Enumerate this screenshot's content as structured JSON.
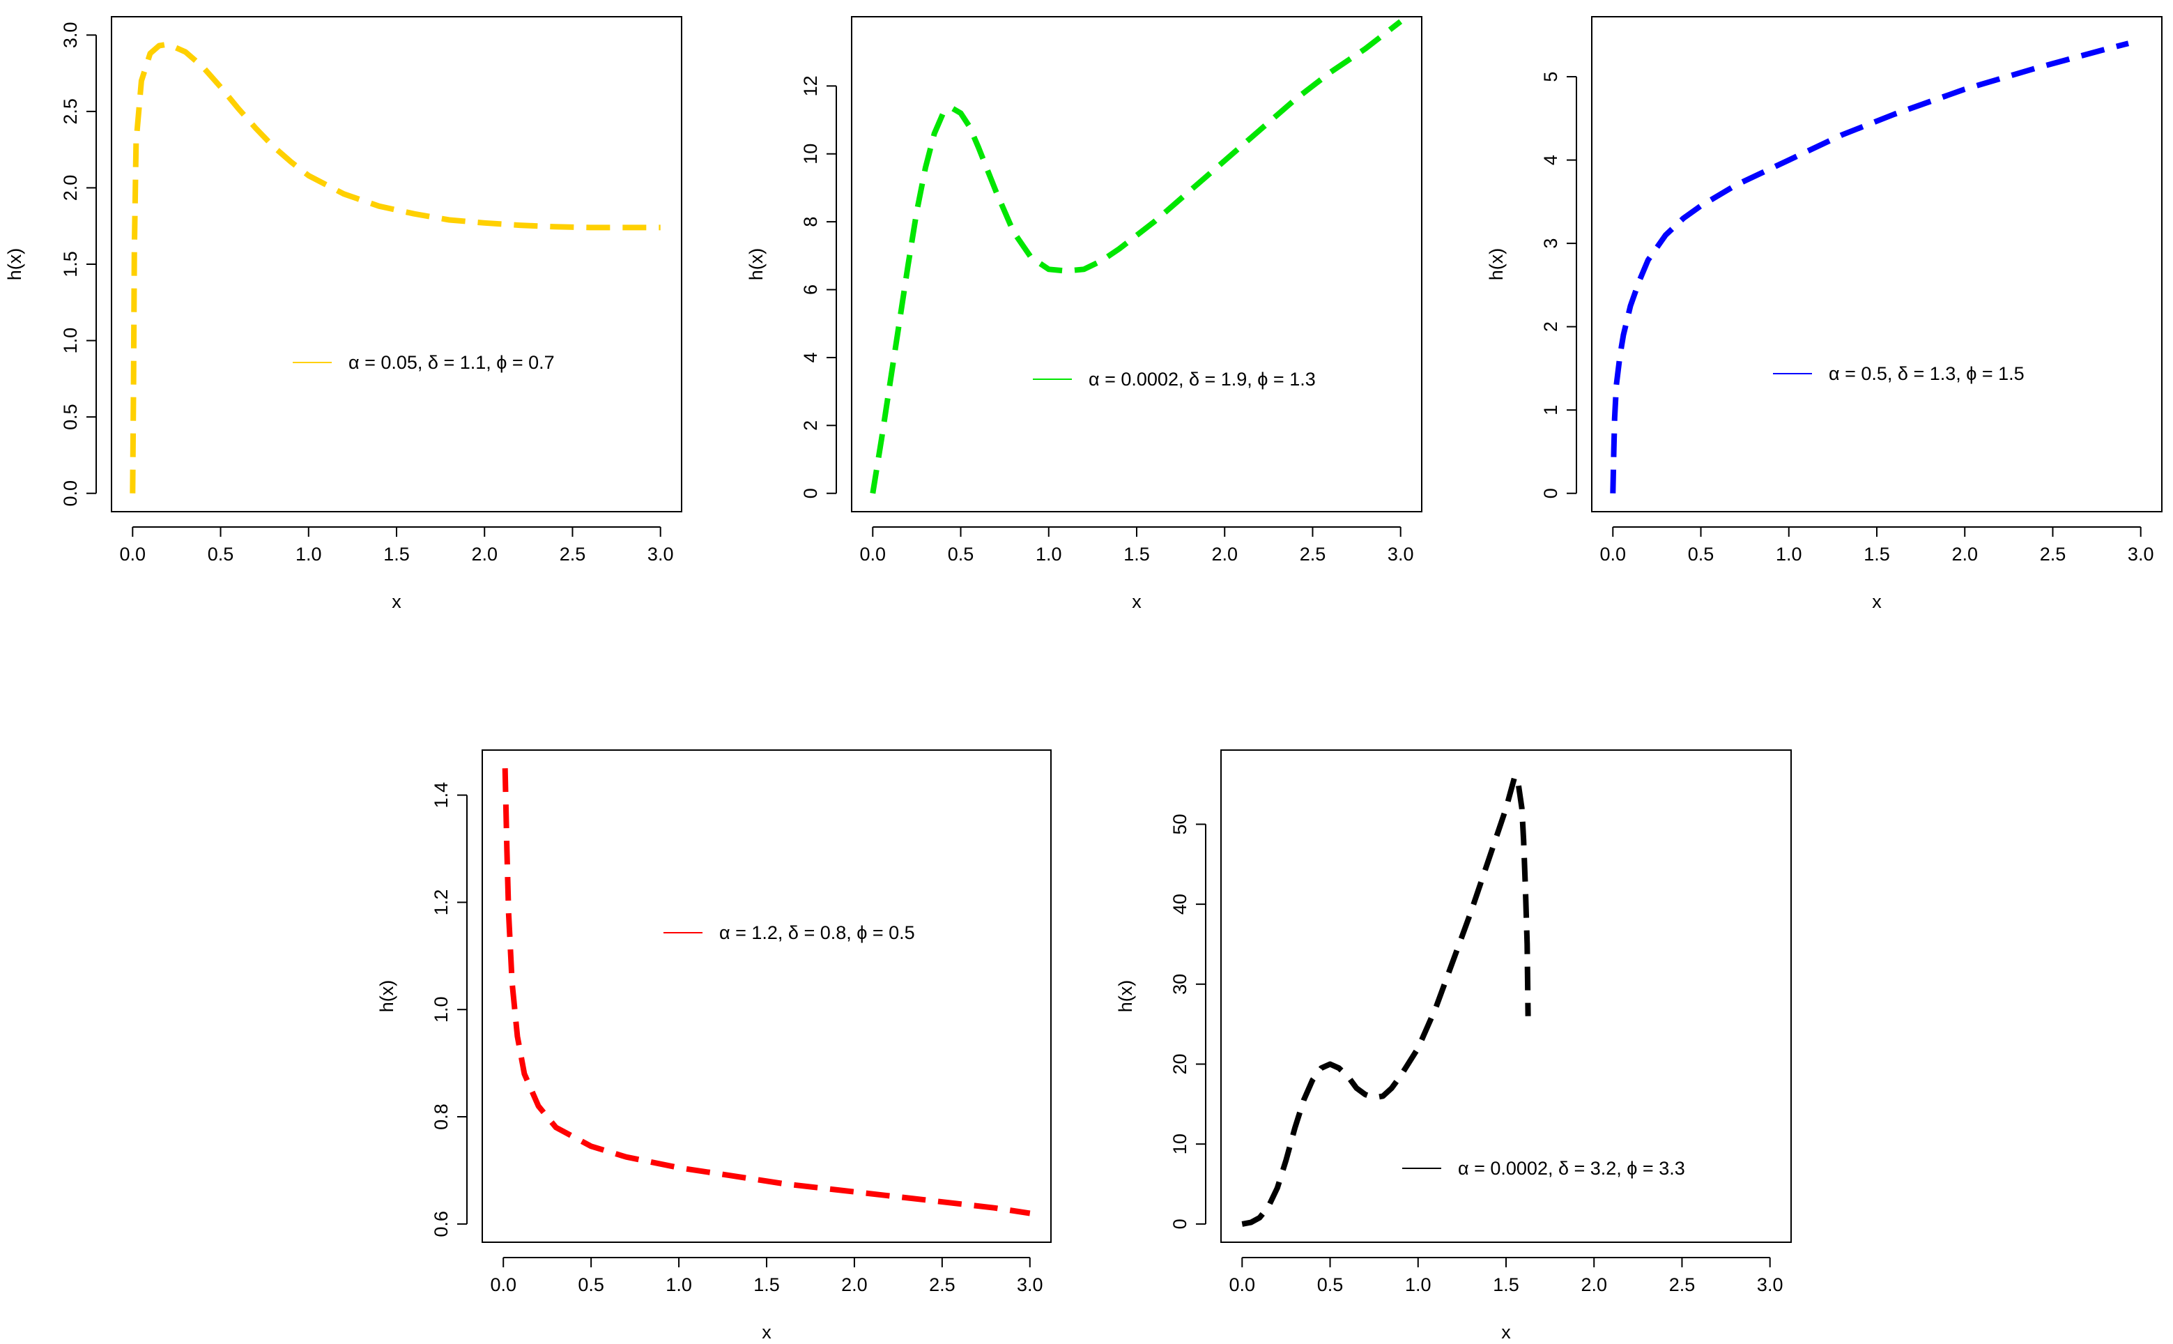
{
  "chart_data": [
    {
      "type": "line",
      "xlabel": "x",
      "ylabel": "h(x)",
      "xlim": [
        0,
        3
      ],
      "ylim": [
        0,
        3
      ],
      "x_ticks": [
        "0.0",
        "0.5",
        "1.0",
        "1.5",
        "2.0",
        "2.5",
        "3.0"
      ],
      "y_ticks": [
        "0.0",
        "0.5",
        "1.0",
        "1.5",
        "2.0",
        "2.5",
        "3.0"
      ],
      "legend": {
        "position": "center-right",
        "entries": [
          {
            "label": "α = 0.05, δ = 1.1, ϕ = 0.7",
            "color": "#FFD000"
          }
        ]
      },
      "line_style": "dashed",
      "series": [
        {
          "name": "α = 0.05, δ = 1.1, ϕ = 0.7",
          "color": "#FFD000",
          "x": [
            0.0,
            0.005,
            0.01,
            0.02,
            0.05,
            0.1,
            0.15,
            0.2,
            0.3,
            0.4,
            0.5,
            0.6,
            0.7,
            0.8,
            0.9,
            1.0,
            1.2,
            1.4,
            1.6,
            1.8,
            2.0,
            2.2,
            2.4,
            2.6,
            2.8,
            3.0
          ],
          "y": [
            0.0,
            0.7,
            1.6,
            2.3,
            2.7,
            2.88,
            2.93,
            2.94,
            2.89,
            2.79,
            2.66,
            2.52,
            2.39,
            2.27,
            2.17,
            2.08,
            1.96,
            1.88,
            1.83,
            1.79,
            1.77,
            1.755,
            1.745,
            1.74,
            1.74,
            1.74
          ]
        }
      ]
    },
    {
      "type": "line",
      "xlabel": "x",
      "ylabel": "h(x)",
      "xlim": [
        0,
        3
      ],
      "ylim": [
        0,
        13.5
      ],
      "x_ticks": [
        "0.0",
        "0.5",
        "1.0",
        "1.5",
        "2.0",
        "2.5",
        "3.0"
      ],
      "y_ticks": [
        "0",
        "2",
        "4",
        "6",
        "8",
        "10",
        "12"
      ],
      "legend": {
        "position": "center-right",
        "entries": [
          {
            "label": "α = 0.0002, δ = 1.9, ϕ = 1.3",
            "color": "#00E600"
          }
        ]
      },
      "line_style": "dashed",
      "series": [
        {
          "name": "α = 0.0002, δ = 1.9, ϕ = 1.3",
          "color": "#00E600",
          "x": [
            0.0,
            0.05,
            0.1,
            0.15,
            0.2,
            0.25,
            0.3,
            0.35,
            0.4,
            0.45,
            0.5,
            0.55,
            0.6,
            0.7,
            0.8,
            0.9,
            1.0,
            1.1,
            1.2,
            1.3,
            1.4,
            1.6,
            1.8,
            2.0,
            2.2,
            2.4,
            2.6,
            2.8,
            3.0
          ],
          "y": [
            0.0,
            1.6,
            3.3,
            5.0,
            6.7,
            8.3,
            9.6,
            10.6,
            11.2,
            11.35,
            11.2,
            10.8,
            10.2,
            8.9,
            7.7,
            6.95,
            6.6,
            6.55,
            6.6,
            6.85,
            7.2,
            8.0,
            8.9,
            9.8,
            10.7,
            11.6,
            12.4,
            13.1,
            13.9
          ]
        }
      ]
    },
    {
      "type": "line",
      "xlabel": "x",
      "ylabel": "h(x)",
      "xlim": [
        0,
        3
      ],
      "ylim": [
        0,
        5.5
      ],
      "x_ticks": [
        "0.0",
        "0.5",
        "1.0",
        "1.5",
        "2.0",
        "2.5",
        "3.0"
      ],
      "y_ticks": [
        "0",
        "1",
        "2",
        "3",
        "4",
        "5"
      ],
      "legend": {
        "position": "center-right",
        "entries": [
          {
            "label": "α = 0.5, δ = 1.3, ϕ = 1.5",
            "color": "#0000FF"
          }
        ]
      },
      "line_style": "dashed",
      "series": [
        {
          "name": "α = 0.5, δ = 1.3, ϕ = 1.5",
          "color": "#0000FF",
          "x": [
            0.0,
            0.005,
            0.01,
            0.02,
            0.04,
            0.06,
            0.1,
            0.15,
            0.2,
            0.3,
            0.4,
            0.5,
            0.7,
            1.0,
            1.3,
            1.6,
            2.0,
            2.4,
            2.8,
            2.93
          ],
          "y": [
            0.0,
            0.5,
            0.9,
            1.3,
            1.65,
            1.9,
            2.25,
            2.55,
            2.8,
            3.1,
            3.3,
            3.45,
            3.7,
            4.0,
            4.3,
            4.55,
            4.85,
            5.1,
            5.33,
            5.4
          ]
        }
      ]
    },
    {
      "type": "line",
      "xlabel": "x",
      "ylabel": "h(x)",
      "xlim": [
        0,
        3
      ],
      "ylim": [
        0.6,
        1.45
      ],
      "x_ticks": [
        "0.0",
        "0.5",
        "1.0",
        "1.5",
        "2.0",
        "2.5",
        "3.0"
      ],
      "y_ticks": [
        "0.6",
        "0.8",
        "1.0",
        "1.2",
        "1.4"
      ],
      "legend": {
        "position": "top-right",
        "entries": [
          {
            "label": "α = 1.2, δ = 0.8, ϕ = 0.5",
            "color": "#FF0000"
          }
        ]
      },
      "line_style": "dashed",
      "series": [
        {
          "name": "α = 1.2, δ = 0.8, ϕ = 0.5",
          "color": "#FF0000",
          "x": [
            0.01,
            0.02,
            0.03,
            0.05,
            0.08,
            0.12,
            0.2,
            0.3,
            0.5,
            0.7,
            1.0,
            1.3,
            1.6,
            2.0,
            2.4,
            2.8,
            3.0
          ],
          "y": [
            1.45,
            1.3,
            1.18,
            1.05,
            0.95,
            0.88,
            0.82,
            0.78,
            0.745,
            0.725,
            0.705,
            0.69,
            0.675,
            0.66,
            0.645,
            0.63,
            0.62
          ]
        }
      ]
    },
    {
      "type": "line",
      "xlabel": "x",
      "ylabel": "h(x)",
      "xlim": [
        0,
        3
      ],
      "ylim": [
        0,
        57
      ],
      "x_ticks": [
        "0.0",
        "0.5",
        "1.0",
        "1.5",
        "2.0",
        "2.5",
        "3.0"
      ],
      "y_ticks": [
        "0",
        "10",
        "20",
        "30",
        "40",
        "50"
      ],
      "legend": {
        "position": "bottom-right",
        "entries": [
          {
            "label": "α = 0.0002, δ = 3.2, ϕ = 3.3",
            "color": "#000000"
          }
        ]
      },
      "line_style": "dashed",
      "series": [
        {
          "name": "α = 0.0002, δ = 3.2, ϕ = 3.3",
          "color": "#000000",
          "x": [
            0.0,
            0.05,
            0.1,
            0.15,
            0.2,
            0.25,
            0.3,
            0.35,
            0.4,
            0.45,
            0.5,
            0.55,
            0.6,
            0.65,
            0.7,
            0.75,
            0.8,
            0.85,
            0.9,
            1.0,
            1.1,
            1.2,
            1.3,
            1.4,
            1.5,
            1.55,
            1.57,
            1.59,
            1.6,
            1.61,
            1.62,
            1.625
          ],
          "y": [
            0.0,
            0.2,
            0.8,
            2.2,
            4.5,
            8.0,
            12.0,
            15.5,
            18.0,
            19.5,
            20.0,
            19.5,
            18.5,
            17.0,
            16.2,
            15.8,
            16.0,
            17.0,
            18.5,
            22.0,
            27.0,
            33.0,
            39.0,
            45.5,
            52.0,
            56.0,
            55.0,
            52.0,
            48.0,
            42.0,
            35.0,
            26.0
          ]
        }
      ]
    }
  ]
}
